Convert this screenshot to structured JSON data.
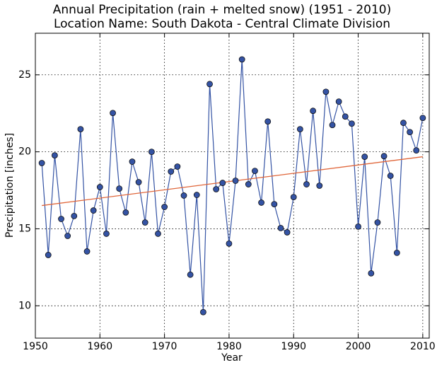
{
  "chart_data": {
    "type": "line",
    "title": "Annual Precipitation (rain + melted snow) (1951 - 2010)",
    "subtitle": "Location Name: South Dakota - Central Climate Division",
    "x_label": "Year",
    "y_label": "Precipitation [inches]",
    "x": [
      1951,
      1952,
      1953,
      1954,
      1955,
      1956,
      1957,
      1958,
      1959,
      1960,
      1961,
      1962,
      1963,
      1964,
      1965,
      1966,
      1967,
      1968,
      1969,
      1970,
      1971,
      1972,
      1973,
      1974,
      1975,
      1976,
      1977,
      1978,
      1979,
      1980,
      1981,
      1982,
      1983,
      1984,
      1985,
      1986,
      1987,
      1988,
      1989,
      1990,
      1991,
      1992,
      1993,
      1994,
      1995,
      1996,
      1997,
      1998,
      1999,
      2000,
      2001,
      2002,
      2003,
      2004,
      2005,
      2006,
      2007,
      2008,
      2009,
      2010
    ],
    "series": [
      {
        "color": "#3453a4",
        "values": [
          19.27,
          13.3,
          19.77,
          15.64,
          14.54,
          15.83,
          21.47,
          13.53,
          16.19,
          17.71,
          14.68,
          22.52,
          17.61,
          16.06,
          19.36,
          18.03,
          15.41,
          20.0,
          14.68,
          16.42,
          18.72,
          19.04,
          17.16,
          12.02,
          17.2,
          9.59,
          24.4,
          17.57,
          17.98,
          14.04,
          18.12,
          26.0,
          17.89,
          18.76,
          16.7,
          21.97,
          16.6,
          15.05,
          14.77,
          17.06,
          21.47,
          17.89,
          22.66,
          17.8,
          23.9,
          21.74,
          23.26,
          22.29,
          21.83,
          15.14,
          19.68,
          12.11,
          15.41,
          19.72,
          18.44,
          13.44,
          21.88,
          21.28,
          20.09,
          22.2
        ]
      }
    ],
    "trend": {
      "x": [
        1951,
        2010
      ],
      "values": [
        16.51,
        19.68
      ],
      "color": "#e0663a"
    },
    "xlim": [
      1950,
      2011
    ],
    "ylim": [
      7.9,
      27.7
    ],
    "xticks": [
      1950,
      1960,
      1970,
      1980,
      1990,
      2000,
      2010
    ],
    "yticks": [
      10,
      15,
      20,
      25
    ],
    "grid": true
  }
}
